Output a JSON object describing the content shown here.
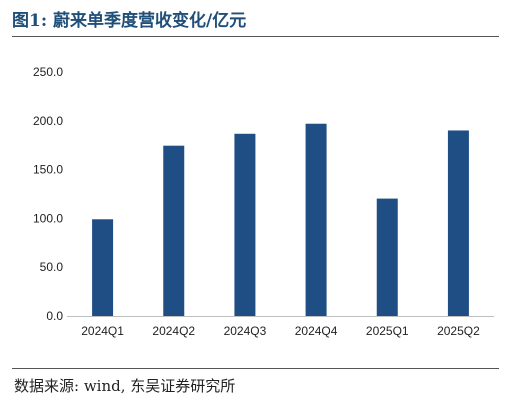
{
  "figure": {
    "title": "图1:  蔚来单季度营收变化/亿元",
    "source": "数据来源:  wind,  东吴证券研究所"
  },
  "colors": {
    "bar": "#1f4e85",
    "axis": "#bfbfbf",
    "text": "#222222",
    "title": "#1f4e79"
  },
  "chart_data": {
    "type": "bar",
    "categories": [
      "2024Q1",
      "2024Q2",
      "2024Q3",
      "2024Q4",
      "2025Q1",
      "2025Q2"
    ],
    "values": [
      99.1,
      174.5,
      186.7,
      197.0,
      120.3,
      190.1
    ],
    "yticks": [
      "0.0",
      "50.0",
      "100.0",
      "150.0",
      "200.0",
      "250.0"
    ],
    "ylim": [
      0,
      250
    ],
    "grid": false,
    "legend": "none",
    "title": "",
    "xlabel": "",
    "ylabel": ""
  }
}
